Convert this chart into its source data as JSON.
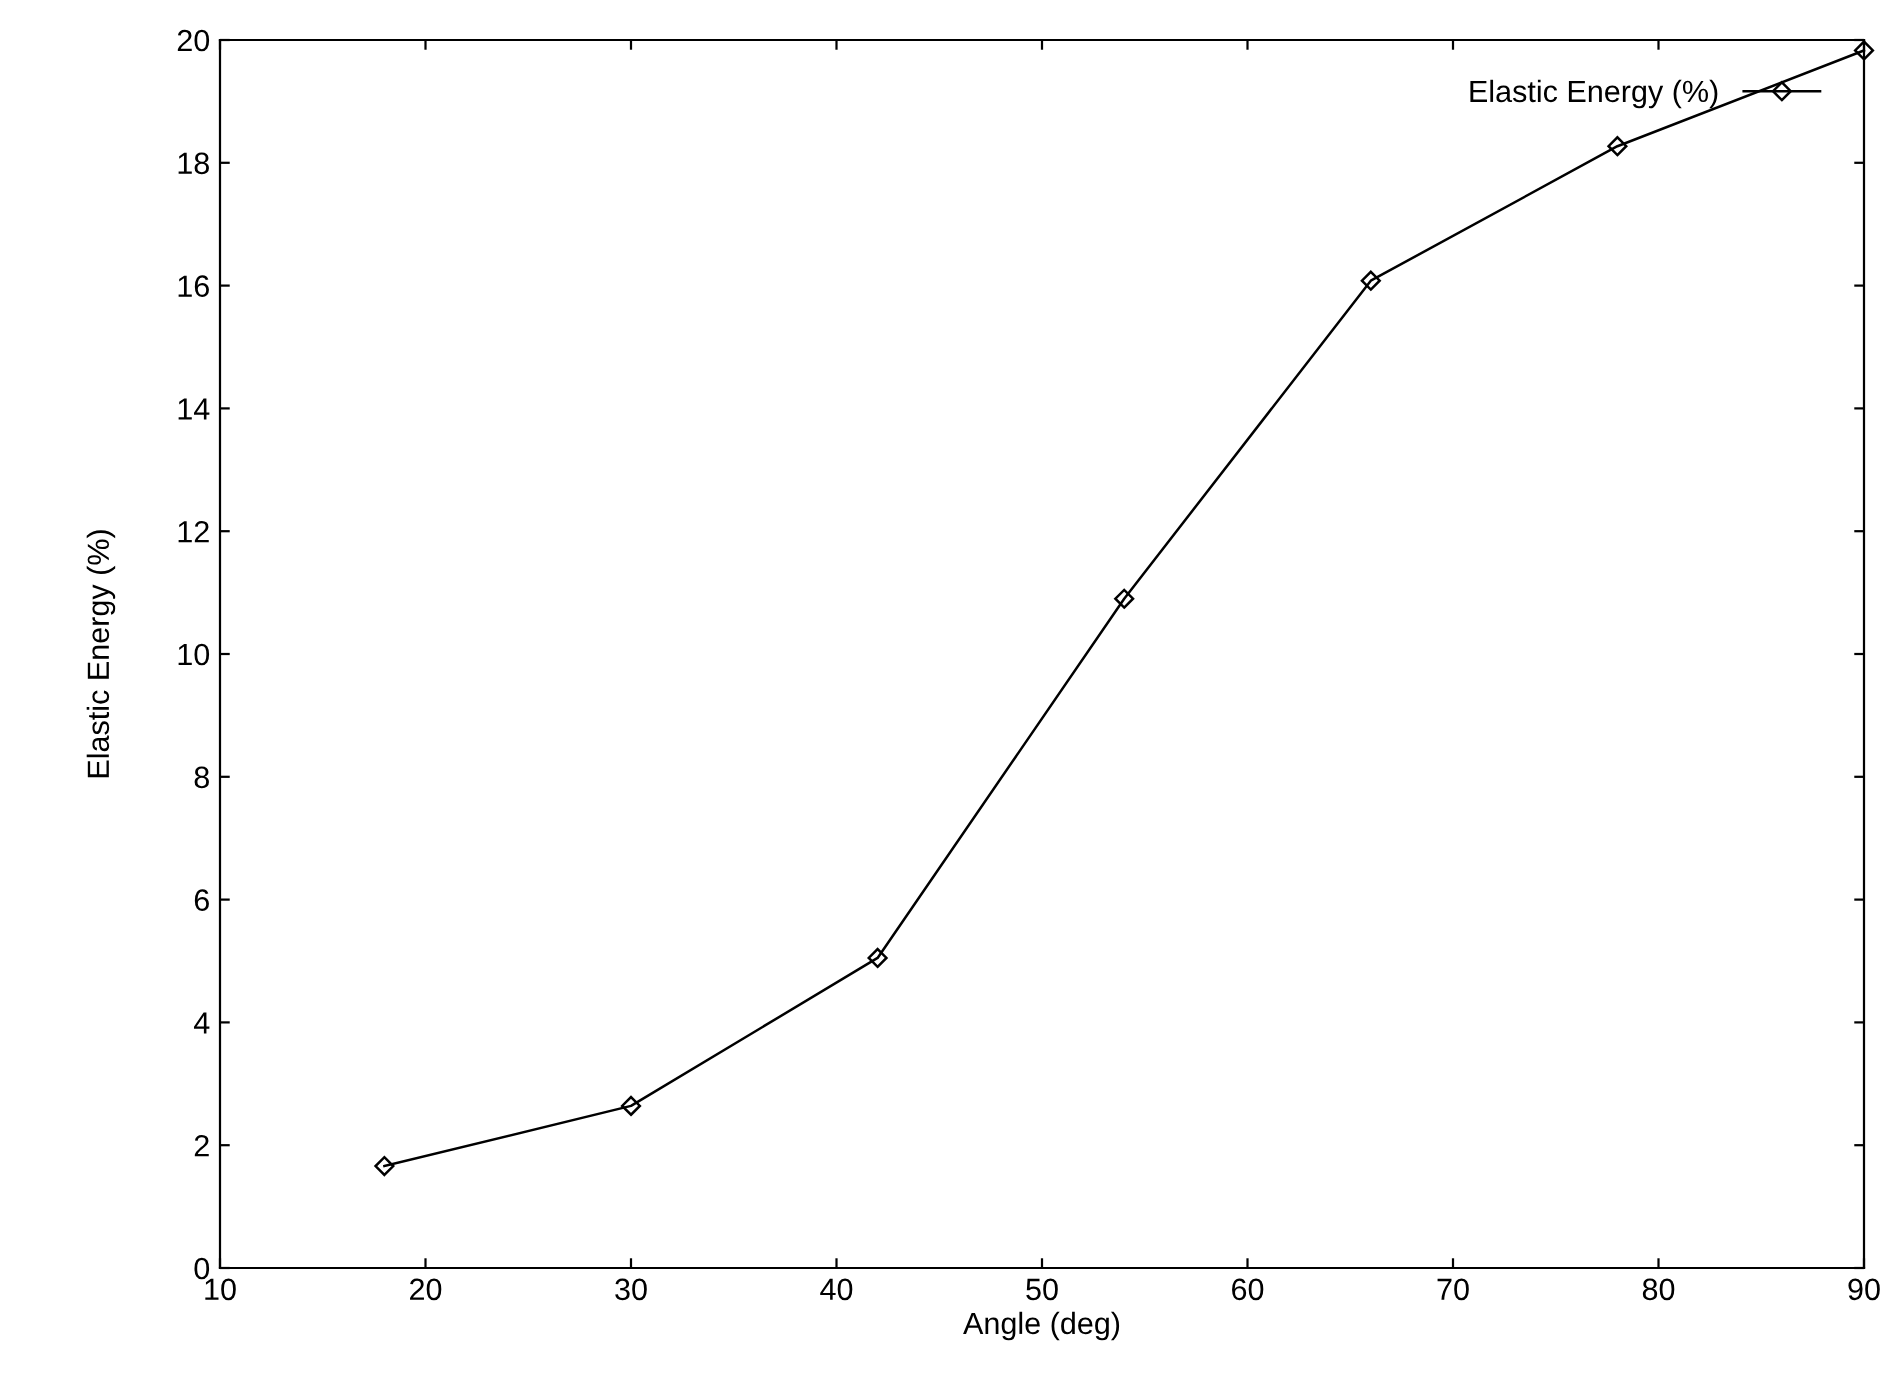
{
  "chart_data": {
    "type": "line",
    "xlabel": "Angle (deg)",
    "ylabel": "Elastic Energy (%)",
    "x": [
      18,
      30,
      42,
      54,
      66,
      78,
      90
    ],
    "series": [
      {
        "name": "Elastic Energy (%)",
        "color": "#000000",
        "values": [
          1.66,
          2.64,
          5.05,
          10.9,
          16.08,
          18.27,
          19.83
        ]
      }
    ],
    "xlim": [
      10,
      90
    ],
    "xticks": [
      10,
      20,
      30,
      40,
      50,
      60,
      70,
      80,
      90
    ],
    "ylim": [
      0,
      20
    ],
    "yticks": [
      0,
      2,
      4,
      6,
      8,
      10,
      12,
      14,
      16,
      18,
      20
    ],
    "grid": false,
    "legend": "top right",
    "marker": "diamond",
    "line_style": "solid"
  }
}
